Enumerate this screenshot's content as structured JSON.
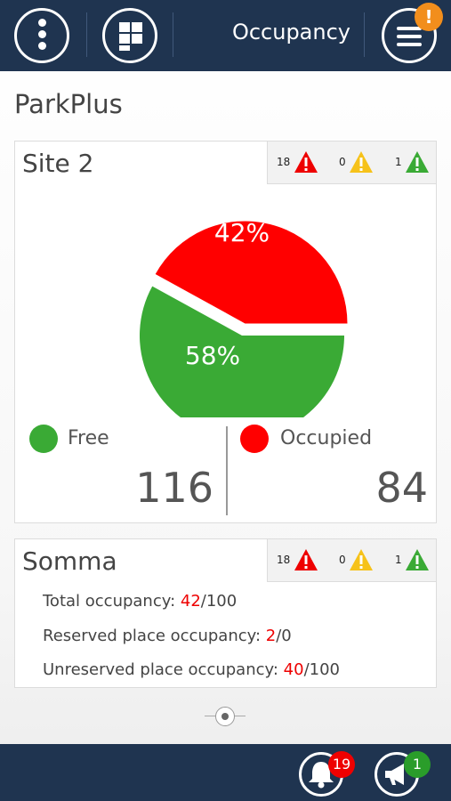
{
  "header": {
    "title": "Occupancy",
    "menu_badge": "!"
  },
  "app_title": "ParkPlus",
  "site_card": {
    "title": "Site 2",
    "alerts": {
      "red": "18",
      "yellow": "0",
      "green": "1"
    },
    "pie": {
      "free_percent_label": "58%",
      "occupied_percent_label": "42%",
      "free_fraction": 0.58,
      "occupied_fraction": 0.42
    },
    "free_label": "Free",
    "occupied_label": "Occupied",
    "free_count": "116",
    "occupied_count": "84"
  },
  "summary_card": {
    "title": "Somma",
    "alerts": {
      "red": "18",
      "yellow": "0",
      "green": "1"
    },
    "rows": [
      {
        "label": "Total occupancy: ",
        "value": "42",
        "total": "/100"
      },
      {
        "label": "Reserved place occupancy: ",
        "value": "2",
        "total": "/0"
      },
      {
        "label": "Unreserved place occupancy: ",
        "value": "40",
        "total": "/100"
      }
    ]
  },
  "footer": {
    "notifications_badge": "19",
    "announcements_badge": "1"
  },
  "colors": {
    "navy": "#1f3450",
    "free": "#3aaa35",
    "occupied": "#ff0000",
    "warning": "#f6c21a",
    "badge_orange": "#f28e1c"
  }
}
